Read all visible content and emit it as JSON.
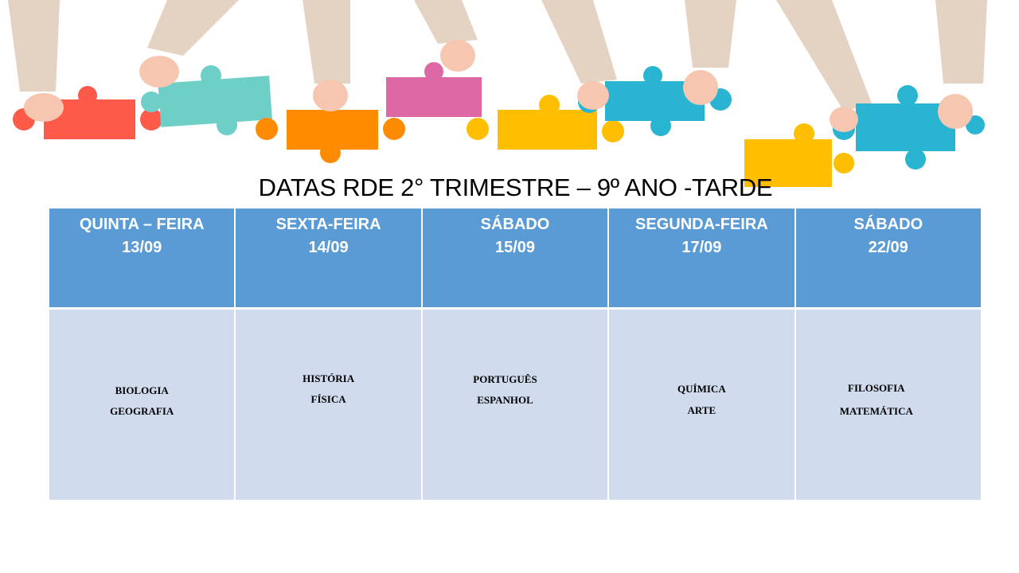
{
  "title": "DATAS RDE 2° TRIMESTRE – 9º ANO -TARDE",
  "colors": {
    "header_bg": "#5b9bd5",
    "cell_bg": "#d0dcee"
  },
  "columns": [
    {
      "day": "QUINTA – FEIRA",
      "date": "13/09",
      "subjects": [
        "BIOLOGIA",
        "GEOGRAFIA"
      ]
    },
    {
      "day": "SEXTA-FEIRA",
      "date": "14/09",
      "subjects": [
        "HISTÓRIA",
        "FÍSICA"
      ]
    },
    {
      "day": "SÁBADO",
      "date": "15/09",
      "subjects": [
        "PORTUGUÊS",
        "ESPANHOL"
      ]
    },
    {
      "day": "SEGUNDA-FEIRA",
      "date": "17/09",
      "subjects": [
        "QUÍMICA",
        "ARTE"
      ]
    },
    {
      "day": "SÁBADO",
      "date": "22/09",
      "subjects": [
        "FILOSOFIA",
        "MATEMÁTICA"
      ]
    }
  ]
}
